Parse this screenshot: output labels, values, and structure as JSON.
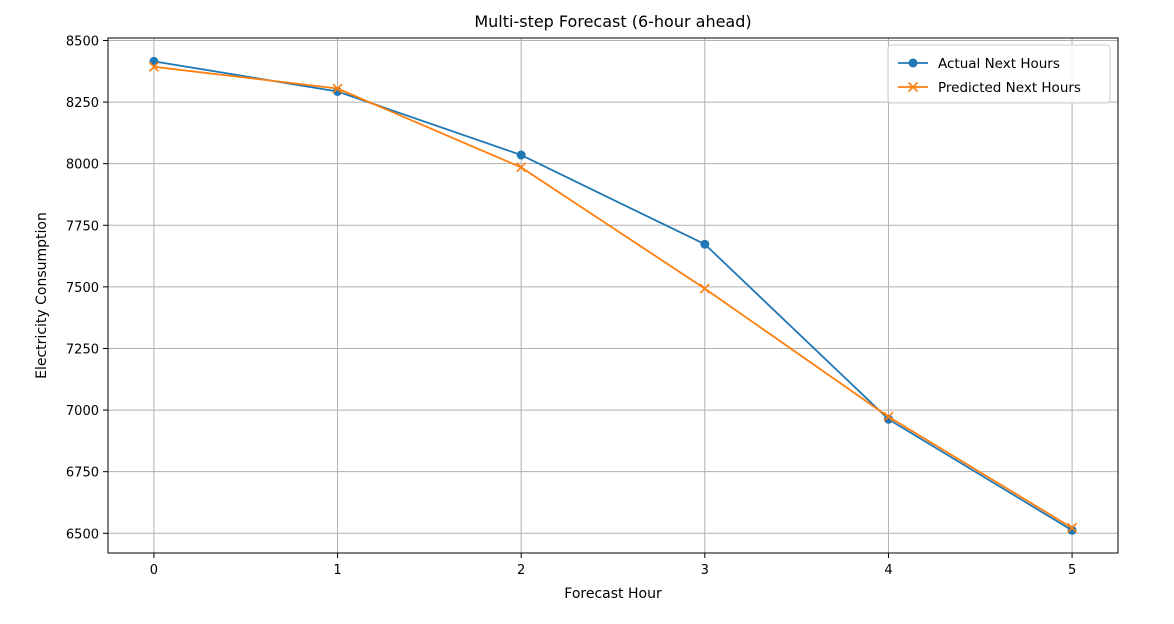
{
  "chart_data": {
    "type": "line",
    "title": "Multi-step Forecast (6-hour ahead)",
    "xlabel": "Forecast Hour",
    "ylabel": "Electricity Consumption",
    "x": [
      0,
      1,
      2,
      3,
      4,
      5
    ],
    "xticks": [
      "0",
      "1",
      "2",
      "3",
      "4",
      "5"
    ],
    "yticks": [
      "6500",
      "6750",
      "7000",
      "7250",
      "7500",
      "7750",
      "8000",
      "8250",
      "8500"
    ],
    "xlim": [
      -0.25,
      5.25
    ],
    "ylim": [
      6420,
      8510
    ],
    "grid": true,
    "legend_position": "top-right",
    "series": [
      {
        "name": "Actual Next Hours",
        "values": [
          8415,
          8293,
          8035,
          7673,
          6963,
          6512
        ],
        "color": "#1f77b4",
        "marker": "circle"
      },
      {
        "name": "Predicted Next Hours",
        "values": [
          8393,
          8305,
          7985,
          7493,
          6973,
          6522
        ],
        "color": "#ff7f0e",
        "marker": "x"
      }
    ]
  }
}
